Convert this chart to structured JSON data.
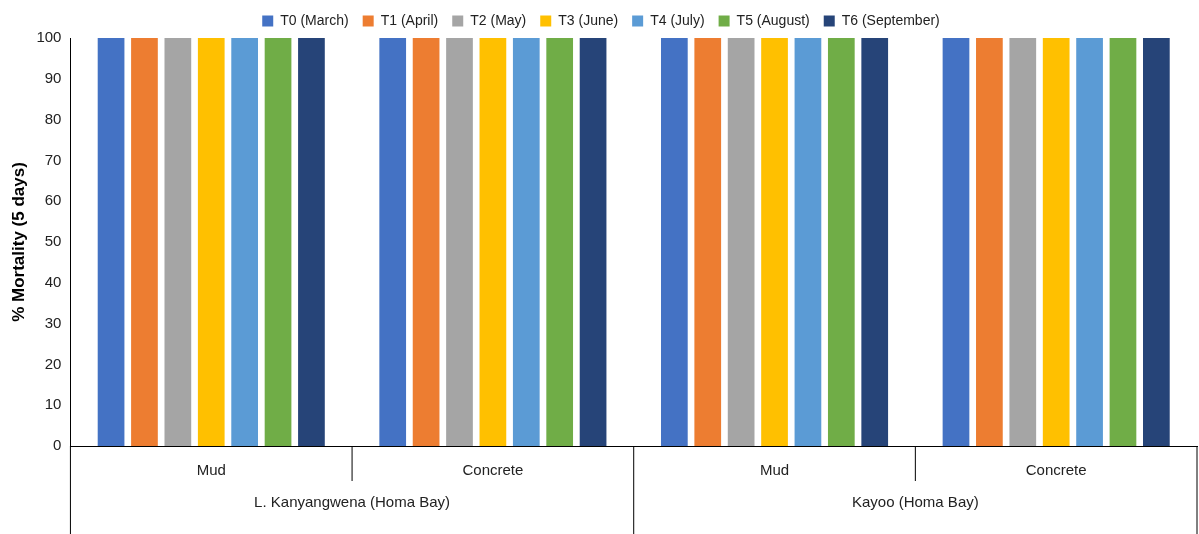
{
  "chart_data": {
    "type": "bar",
    "ylabel": "% Mortality (5 days)",
    "categories": [
      "Mud",
      "Concrete",
      "Mud",
      "Concrete"
    ],
    "annotations": [
      "L. Kanyangwena (Homa Bay)",
      "Kayoo (Homa Bay)"
    ],
    "series": [
      {
        "name": "T0 (March)",
        "color": "#4472c4",
        "values": [
          100,
          100,
          100,
          100
        ]
      },
      {
        "name": "T1 (April)",
        "color": "#ed7d31",
        "values": [
          100,
          100,
          100,
          100
        ]
      },
      {
        "name": "T2 (May)",
        "color": "#a5a5a5",
        "values": [
          100,
          100,
          100,
          100
        ]
      },
      {
        "name": "T3 (June)",
        "color": "#ffc000",
        "values": [
          100,
          100,
          100,
          100
        ]
      },
      {
        "name": "T4 (July)",
        "color": "#5b9bd5",
        "values": [
          100,
          100,
          100,
          100
        ]
      },
      {
        "name": "T5 (August)",
        "color": "#70ad47",
        "values": [
          100,
          100,
          100,
          100
        ]
      },
      {
        "name": "T6 (September)",
        "color": "#264478",
        "values": [
          100,
          100,
          100,
          100
        ]
      }
    ],
    "ylim": [
      0,
      100
    ],
    "yticks": [
      0,
      10,
      20,
      30,
      40,
      50,
      60,
      70,
      80,
      90,
      100
    ],
    "grid": false,
    "legend": "top"
  }
}
